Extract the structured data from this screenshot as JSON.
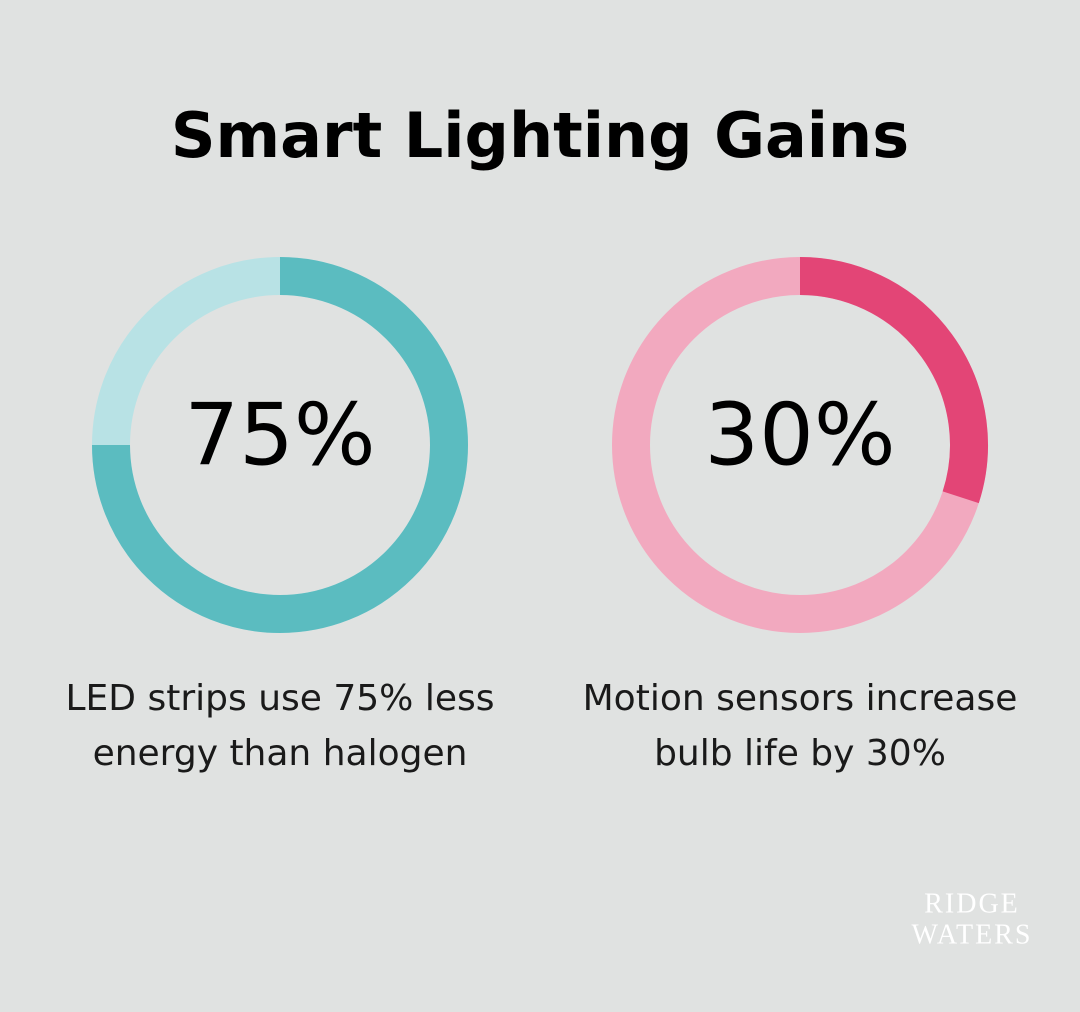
{
  "title": "Smart Lighting Gains",
  "chart_data": [
    {
      "type": "donut",
      "values": [
        75
      ],
      "value_labels": [
        "75%"
      ],
      "ylim": [
        0,
        100
      ],
      "color": "#5bbcc0",
      "track_color": "#b8e2e5",
      "caption": [
        "LED strips use 75% less",
        "energy than halogen"
      ]
    },
    {
      "type": "donut",
      "values": [
        30
      ],
      "value_labels": [
        "30%"
      ],
      "ylim": [
        0,
        100
      ],
      "color": "#e34576",
      "track_color": "#f2a9bf",
      "caption": [
        "Motion sensors increase",
        "bulb life by 30%"
      ]
    }
  ],
  "logo": [
    "RIDGE",
    "WATERS"
  ]
}
